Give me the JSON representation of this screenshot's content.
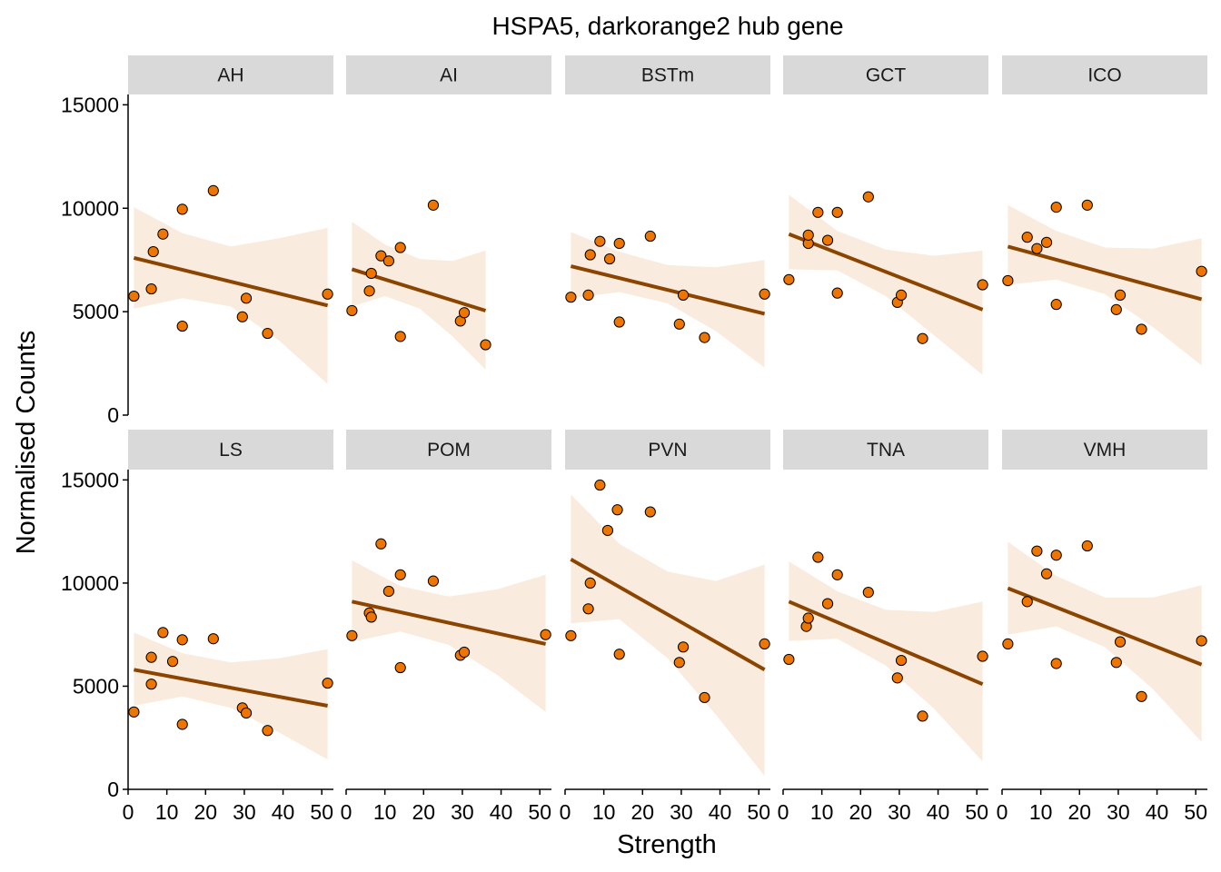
{
  "colors": {
    "point_fill": "#ee7600",
    "point_stroke": "#000000",
    "line": "#8b4500",
    "ribbon": "#f9ebdd",
    "strip": "#d9d9d9",
    "axis": "#000000"
  },
  "chart_data": {
    "type": "scatter",
    "title": "HSPA5, darkorange2 hub gene",
    "xlabel": "Strength",
    "ylabel": "Normalised Counts",
    "xlim": [
      0,
      53
    ],
    "ylim": [
      0,
      15500
    ],
    "x_ticks": [
      0,
      10,
      20,
      30,
      40,
      50
    ],
    "y_ticks": [
      0,
      5000,
      10000,
      15000
    ],
    "grid": false,
    "legend": "none",
    "facet_rows": 2,
    "facet_cols": 5,
    "smooth": "linear fit with confidence band",
    "facets": [
      {
        "label": "AH",
        "points": [
          [
            1.5,
            5750
          ],
          [
            6,
            6100
          ],
          [
            6.5,
            7900
          ],
          [
            9,
            8750
          ],
          [
            14,
            9950
          ],
          [
            14,
            4300
          ],
          [
            22,
            10850
          ],
          [
            29.5,
            4750
          ],
          [
            30.5,
            5650
          ],
          [
            36,
            3950
          ],
          [
            51.5,
            5850
          ]
        ],
        "fit": {
          "x": [
            1.5,
            51.5
          ],
          "y": [
            7600,
            5300
          ]
        },
        "band": {
          "x": [
            1.5,
            14,
            26.5,
            39,
            51.5
          ],
          "lower": [
            5150,
            5650,
            5250,
            3600,
            1500
          ],
          "upper": [
            10050,
            8800,
            8150,
            8550,
            9050
          ]
        }
      },
      {
        "label": "AI",
        "points": [
          [
            1.5,
            5050
          ],
          [
            6,
            6000
          ],
          [
            6.5,
            6850
          ],
          [
            9,
            7700
          ],
          [
            11,
            7450
          ],
          [
            14,
            8100
          ],
          [
            14,
            3800
          ],
          [
            22.5,
            10150
          ],
          [
            29.5,
            4550
          ],
          [
            30.5,
            4950
          ],
          [
            36,
            3400
          ]
        ],
        "fit": {
          "x": [
            1.5,
            36
          ],
          "y": [
            7050,
            5050
          ]
        },
        "band": {
          "x": [
            1.5,
            10,
            19,
            27.5,
            36
          ],
          "lower": [
            5250,
            5750,
            5150,
            3800,
            2200
          ],
          "upper": [
            9350,
            8250,
            7550,
            7450,
            7950
          ]
        }
      },
      {
        "label": "BSTm",
        "points": [
          [
            1.5,
            5700
          ],
          [
            6,
            5800
          ],
          [
            6.5,
            7750
          ],
          [
            9,
            8400
          ],
          [
            11.5,
            7550
          ],
          [
            14,
            8300
          ],
          [
            14,
            4500
          ],
          [
            22,
            8650
          ],
          [
            29.5,
            4400
          ],
          [
            30.5,
            5800
          ],
          [
            36,
            3750
          ],
          [
            51.5,
            5850
          ]
        ],
        "fit": {
          "x": [
            1.5,
            51.5
          ],
          "y": [
            7200,
            4900
          ]
        },
        "band": {
          "x": [
            1.5,
            14,
            26.5,
            39,
            51.5
          ],
          "lower": [
            5650,
            5950,
            5400,
            4050,
            2300
          ],
          "upper": [
            8850,
            7900,
            7250,
            7150,
            7500
          ]
        }
      },
      {
        "label": "GCT",
        "points": [
          [
            1.5,
            6550
          ],
          [
            6.5,
            8300
          ],
          [
            6.5,
            8700
          ],
          [
            9,
            9800
          ],
          [
            11.5,
            8450
          ],
          [
            14,
            9800
          ],
          [
            14,
            5900
          ],
          [
            22,
            10550
          ],
          [
            29.5,
            5450
          ],
          [
            30.5,
            5800
          ],
          [
            36,
            3700
          ],
          [
            51.5,
            6300
          ]
        ],
        "fit": {
          "x": [
            1.5,
            51.5
          ],
          "y": [
            8750,
            5100
          ]
        },
        "band": {
          "x": [
            1.5,
            14,
            26.5,
            39,
            51.5
          ],
          "lower": [
            7050,
            7000,
            5750,
            3850,
            1950
          ],
          "upper": [
            10650,
            8900,
            8000,
            7700,
            7950
          ]
        }
      },
      {
        "label": "ICO",
        "points": [
          [
            1.5,
            6500
          ],
          [
            6.5,
            8600
          ],
          [
            9,
            8050
          ],
          [
            11.5,
            8350
          ],
          [
            14,
            10050
          ],
          [
            14,
            5350
          ],
          [
            22,
            10150
          ],
          [
            29.5,
            5100
          ],
          [
            30.5,
            5800
          ],
          [
            36,
            4150
          ],
          [
            51.5,
            6950
          ]
        ],
        "fit": {
          "x": [
            1.5,
            51.5
          ],
          "y": [
            8150,
            5600
          ]
        },
        "band": {
          "x": [
            1.5,
            14,
            26.5,
            39,
            51.5
          ],
          "lower": [
            6300,
            6550,
            5850,
            4250,
            2400
          ],
          "upper": [
            10150,
            8900,
            8100,
            8050,
            8550
          ]
        }
      },
      {
        "label": "LS",
        "points": [
          [
            1.5,
            3750
          ],
          [
            6,
            5100
          ],
          [
            6,
            6400
          ],
          [
            9,
            7600
          ],
          [
            11.5,
            6200
          ],
          [
            14,
            7250
          ],
          [
            14,
            3150
          ],
          [
            22,
            7300
          ],
          [
            29.5,
            3950
          ],
          [
            30.5,
            3700
          ],
          [
            36,
            2850
          ],
          [
            51.5,
            5150
          ]
        ],
        "fit": {
          "x": [
            1.5,
            51.5
          ],
          "y": [
            5800,
            4050
          ]
        },
        "band": {
          "x": [
            1.5,
            14,
            26.5,
            39,
            51.5
          ],
          "lower": [
            4050,
            4500,
            3950,
            2750,
            1450
          ],
          "upper": [
            7600,
            6600,
            6150,
            6350,
            6800
          ]
        }
      },
      {
        "label": "POM",
        "points": [
          [
            1.5,
            7450
          ],
          [
            6,
            8550
          ],
          [
            6.5,
            8350
          ],
          [
            9,
            11900
          ],
          [
            11,
            9600
          ],
          [
            14,
            10400
          ],
          [
            14,
            5900
          ],
          [
            22.5,
            10100
          ],
          [
            29.5,
            6500
          ],
          [
            30.5,
            6650
          ],
          [
            51.5,
            7500
          ]
        ],
        "fit": {
          "x": [
            1.5,
            51.5
          ],
          "y": [
            9100,
            7050
          ]
        },
        "band": {
          "x": [
            1.5,
            14,
            26.5,
            39,
            51.5
          ],
          "lower": [
            7150,
            7650,
            7000,
            5550,
            3750
          ],
          "upper": [
            11100,
            9850,
            9350,
            9700,
            10400
          ]
        }
      },
      {
        "label": "PVN",
        "points": [
          [
            1.5,
            7450
          ],
          [
            6,
            8750
          ],
          [
            6.5,
            10000
          ],
          [
            9,
            14750
          ],
          [
            11,
            12550
          ],
          [
            13.5,
            13550
          ],
          [
            14,
            6550
          ],
          [
            22,
            13450
          ],
          [
            29.5,
            6150
          ],
          [
            30.5,
            6900
          ],
          [
            36,
            4450
          ],
          [
            51.5,
            7050
          ]
        ],
        "fit": {
          "x": [
            1.5,
            51.5
          ],
          "y": [
            11150,
            5800
          ]
        },
        "band": {
          "x": [
            1.5,
            14,
            26.5,
            39,
            51.5
          ],
          "lower": [
            8050,
            8250,
            6350,
            3600,
            650
          ],
          "upper": [
            14300,
            11900,
            10550,
            10100,
            10900
          ]
        }
      },
      {
        "label": "TNA",
        "points": [
          [
            1.5,
            6300
          ],
          [
            6,
            7900
          ],
          [
            6.5,
            8300
          ],
          [
            9,
            11250
          ],
          [
            11.5,
            9000
          ],
          [
            14,
            10400
          ],
          [
            22,
            9550
          ],
          [
            29.5,
            5400
          ],
          [
            30.5,
            6250
          ],
          [
            36,
            3550
          ],
          [
            51.5,
            6450
          ]
        ],
        "fit": {
          "x": [
            1.5,
            51.5
          ],
          "y": [
            9100,
            5100
          ]
        },
        "band": {
          "x": [
            1.5,
            14,
            26.5,
            39,
            51.5
          ],
          "lower": [
            7200,
            7300,
            6000,
            3900,
            1350
          ],
          "upper": [
            11050,
            9600,
            8700,
            8600,
            9100
          ]
        }
      },
      {
        "label": "VMH",
        "points": [
          [
            1.5,
            7050
          ],
          [
            6.5,
            9100
          ],
          [
            9,
            11550
          ],
          [
            11.5,
            10450
          ],
          [
            14,
            11350
          ],
          [
            14,
            6100
          ],
          [
            22,
            11800
          ],
          [
            29.5,
            6150
          ],
          [
            30.5,
            7150
          ],
          [
            36,
            4500
          ],
          [
            51.5,
            7200
          ]
        ],
        "fit": {
          "x": [
            1.5,
            51.5
          ],
          "y": [
            9750,
            6050
          ]
        },
        "band": {
          "x": [
            1.5,
            14,
            26.5,
            39,
            51.5
          ],
          "lower": [
            7500,
            7900,
            6900,
            4850,
            2300
          ],
          "upper": [
            12000,
            10350,
            9300,
            9300,
            9900
          ]
        }
      }
    ]
  }
}
